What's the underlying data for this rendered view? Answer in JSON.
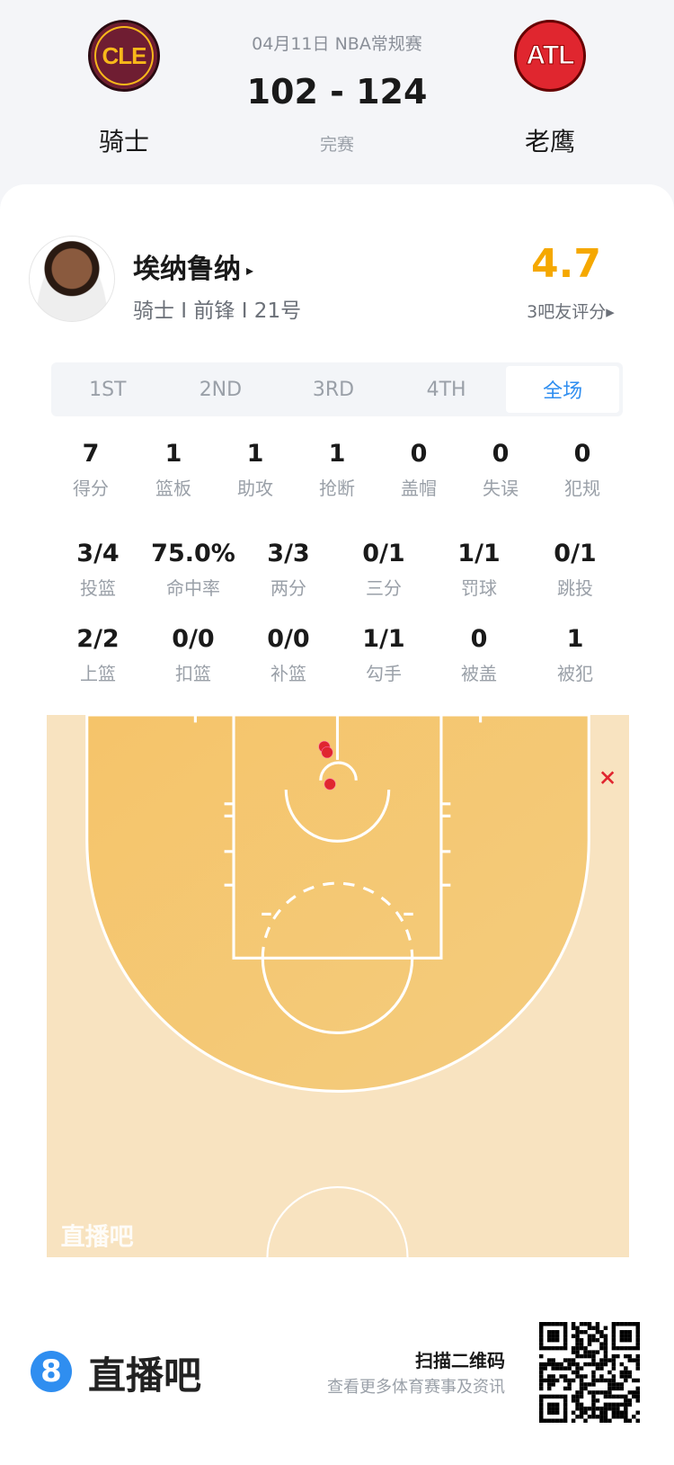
{
  "match": {
    "date_league": "04月11日 NBA常规赛",
    "score": "102 - 124",
    "status": "完赛",
    "home": {
      "name": "骑士",
      "abbr": "CLE"
    },
    "away": {
      "name": "老鹰",
      "abbr": "ATL"
    }
  },
  "player": {
    "name": "埃纳鲁纳",
    "arrow": "▸",
    "info": "骑士 I 前锋 I 21号",
    "rating": "4.7",
    "rating_label": "3吧友评分▸",
    "rating_color": "#f5a800"
  },
  "tabs": [
    {
      "label": "1ST"
    },
    {
      "label": "2ND"
    },
    {
      "label": "3RD"
    },
    {
      "label": "4TH"
    },
    {
      "label": "全场",
      "active": true
    }
  ],
  "stats_row1": [
    {
      "v": "7",
      "l": "得分"
    },
    {
      "v": "1",
      "l": "篮板"
    },
    {
      "v": "1",
      "l": "助攻"
    },
    {
      "v": "1",
      "l": "抢断"
    },
    {
      "v": "0",
      "l": "盖帽"
    },
    {
      "v": "0",
      "l": "失误"
    },
    {
      "v": "0",
      "l": "犯规"
    }
  ],
  "stats_row2": [
    {
      "v": "3/4",
      "l": "投篮"
    },
    {
      "v": "75.0%",
      "l": "命中率"
    },
    {
      "v": "3/3",
      "l": "两分"
    },
    {
      "v": "0/1",
      "l": "三分"
    },
    {
      "v": "1/1",
      "l": "罚球"
    },
    {
      "v": "0/1",
      "l": "跳投"
    }
  ],
  "stats_row3": [
    {
      "v": "2/2",
      "l": "上篮"
    },
    {
      "v": "0/0",
      "l": "扣篮"
    },
    {
      "v": "0/0",
      "l": "补篮"
    },
    {
      "v": "1/1",
      "l": "勾手"
    },
    {
      "v": "0",
      "l": "被盖"
    },
    {
      "v": "1",
      "l": "被犯"
    }
  ],
  "shot_chart": {
    "watermark": "直播吧",
    "made_color": "#e0262f",
    "miss_color": "#e0262f",
    "shots": [
      {
        "result": "made"
      },
      {
        "result": "made"
      },
      {
        "result": "made"
      },
      {
        "result": "missed"
      }
    ]
  },
  "footer": {
    "brand": "直播吧",
    "logo_glyph": "8",
    "scan_title": "扫描二维码",
    "scan_sub": "查看更多体育赛事及资讯"
  }
}
